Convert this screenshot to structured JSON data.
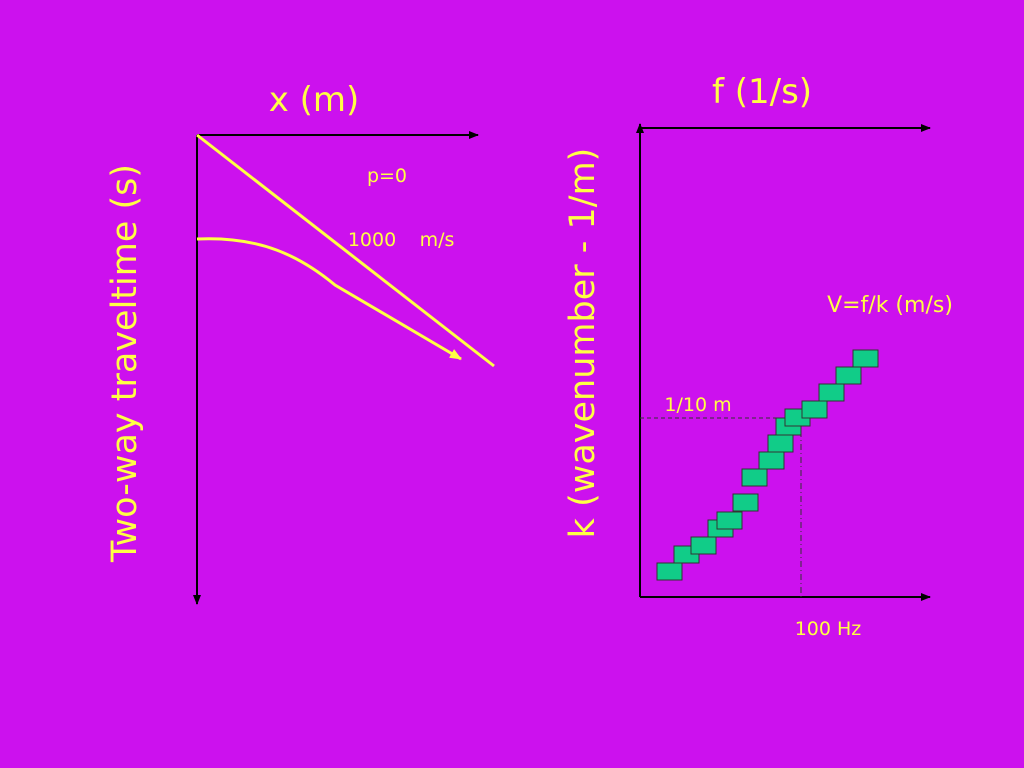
{
  "colors": {
    "background": "#cc11ee",
    "yellow": "#ffff44",
    "axis": "#000000",
    "box_fill": "#11cc88",
    "box_stroke": "#333333"
  },
  "left_diagram": {
    "x_axis_label": "x (m)",
    "y_axis_label": "Two-way traveltime (s)",
    "label_p0": "p=0",
    "label_velocity": "1000",
    "label_velocity_unit": "m/s"
  },
  "right_diagram": {
    "f_axis_label": "f (1/s)",
    "k_axis_label": "k (wavenumber - 1/m)",
    "velocity_formula": "V=f/k (m/s)",
    "k_marker_label": "1/10 m",
    "f_marker_label": "100 Hz"
  }
}
